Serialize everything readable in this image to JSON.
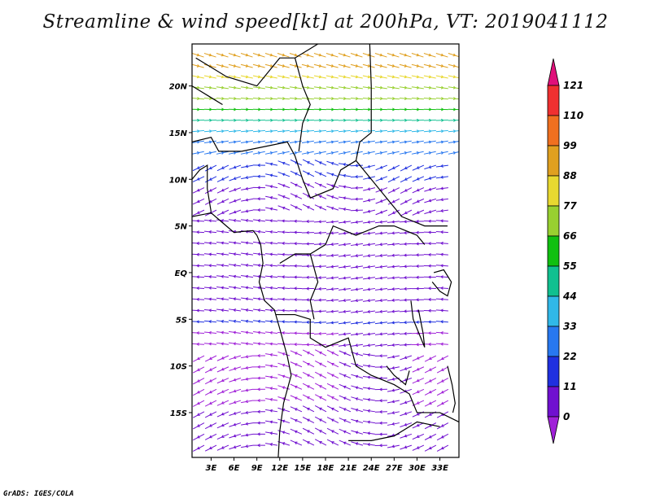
{
  "title": "Streamline & wind speed[kt] at 200hPa, VT: 2019041112",
  "credit": "GrADS: IGES/COLA",
  "map": {
    "lon_min": 0.5,
    "lon_max": 35.5,
    "lat_min": -19.8,
    "lat_max": 24.5,
    "lat_ticks": [
      {
        "value": 20,
        "label": "20N"
      },
      {
        "value": 15,
        "label": "15N"
      },
      {
        "value": 10,
        "label": "10N"
      },
      {
        "value": 5,
        "label": "5N"
      },
      {
        "value": 0,
        "label": "EQ"
      },
      {
        "value": -5,
        "label": "5S"
      },
      {
        "value": -10,
        "label": "10S"
      },
      {
        "value": -15,
        "label": "15S"
      }
    ],
    "lon_ticks": [
      {
        "value": 3,
        "label": "3E"
      },
      {
        "value": 6,
        "label": "6E"
      },
      {
        "value": 9,
        "label": "9E"
      },
      {
        "value": 12,
        "label": "12E"
      },
      {
        "value": 15,
        "label": "15E"
      },
      {
        "value": 18,
        "label": "18E"
      },
      {
        "value": 21,
        "label": "21E"
      },
      {
        "value": 24,
        "label": "24E"
      },
      {
        "value": 27,
        "label": "27E"
      },
      {
        "value": 30,
        "label": "30E"
      },
      {
        "value": 33,
        "label": "33E"
      }
    ]
  },
  "colorbar": {
    "unit": "kt",
    "labels": [
      "121",
      "110",
      "99",
      "88",
      "77",
      "66",
      "55",
      "44",
      "33",
      "22",
      "11",
      "0"
    ],
    "colors": [
      "#e0107a",
      "#f03030",
      "#f07020",
      "#e0a020",
      "#e8d830",
      "#98d030",
      "#10c010",
      "#10c090",
      "#30b8e8",
      "#2878f0",
      "#2030e0",
      "#7010d0",
      "#a020d8"
    ]
  }
}
